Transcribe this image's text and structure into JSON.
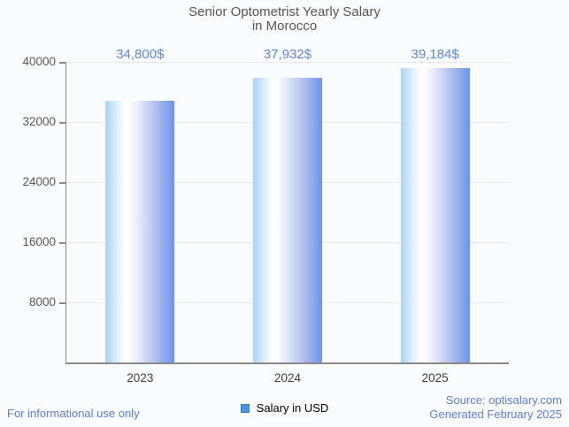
{
  "title": {
    "line1": "Senior Optometrist Yearly Salary",
    "line2": "in Morocco"
  },
  "chart_data": {
    "type": "bar",
    "title": "Senior Optometrist Yearly Salary in Morocco",
    "categories": [
      "2023",
      "2024",
      "2025"
    ],
    "values": [
      34800,
      37932,
      39184
    ],
    "value_labels": [
      "34,800$",
      "37,932$",
      "39,184$"
    ],
    "series": [
      {
        "name": "Salary in USD",
        "values": [
          34800,
          37932,
          39184
        ]
      }
    ],
    "xlabel": "",
    "ylabel": "",
    "ylim": [
      0,
      40000
    ],
    "yticks": [
      8000,
      16000,
      24000,
      32000,
      40000
    ],
    "grid": true,
    "legend_position": "bottom",
    "bar_gradient": [
      "#a7d2fa",
      "#ffffff",
      "#6b94e7"
    ],
    "value_label_color": "#5b87d9"
  },
  "legend": {
    "label": "Salary in USD",
    "marker_color": "#4f92e3"
  },
  "footer": {
    "left": "For informational use only",
    "source": "Source: optisalary.com",
    "generated": "Generated February 2025"
  },
  "colors": {
    "accent_text": "#5b87d9",
    "footer_text": "#5a7fd6",
    "title_text": "#565656",
    "axis": "#8a8a8a",
    "gridline": "#e8e8e8",
    "plot_bg": "#fbfcfe"
  }
}
